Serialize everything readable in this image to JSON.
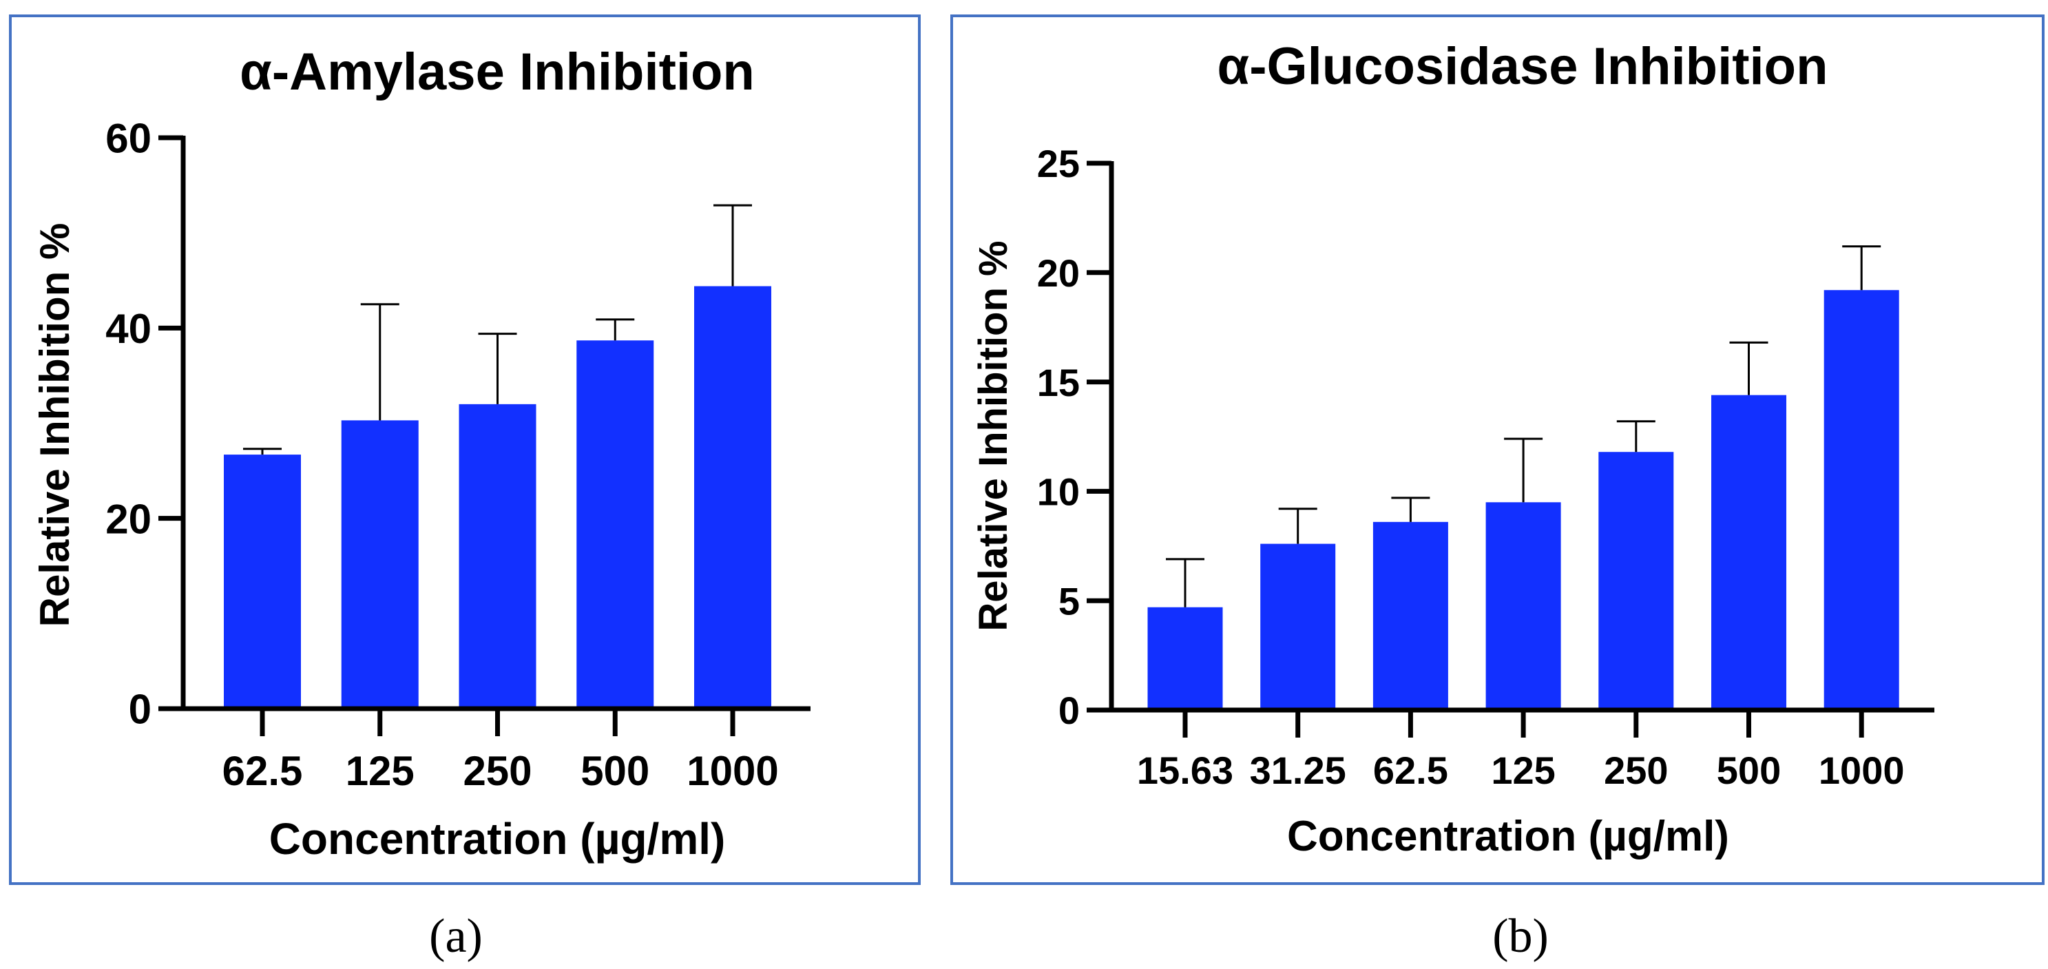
{
  "colors": {
    "bar": "#1230ff",
    "frame": "#4472c4",
    "axis": "#000000"
  },
  "chart_data": [
    {
      "type": "bar",
      "panel_label": "a",
      "title": "α-Amylase Inhibition",
      "xlabel": "Concentration (µg/ml)",
      "ylabel": "Relative Inhibition %",
      "categories": [
        "62.5",
        "125",
        "250",
        "500",
        "1000"
      ],
      "values": [
        26.7,
        30.3,
        32.0,
        38.7,
        44.4
      ],
      "error_upper": [
        27.3,
        42.5,
        39.4,
        40.9,
        52.9
      ],
      "ylim": [
        0,
        60
      ],
      "yticks": [
        0,
        20,
        40,
        60
      ],
      "grid": false
    },
    {
      "type": "bar",
      "panel_label": "b",
      "title": "α-Glucosidase Inhibition",
      "xlabel": "Concentration (µg/ml)",
      "ylabel": "Relative Inhibition %",
      "categories": [
        "15.63",
        "31.25",
        "62.5",
        "125",
        "250",
        "500",
        "1000"
      ],
      "values": [
        4.7,
        7.6,
        8.6,
        9.5,
        11.8,
        14.4,
        19.2
      ],
      "error_upper": [
        6.9,
        9.2,
        9.7,
        12.4,
        13.2,
        16.8,
        21.2
      ],
      "ylim": [
        0,
        25
      ],
      "yticks": [
        0,
        5,
        10,
        15,
        20,
        25
      ],
      "grid": false
    }
  ],
  "captions": [
    "(a)",
    "(b)"
  ]
}
